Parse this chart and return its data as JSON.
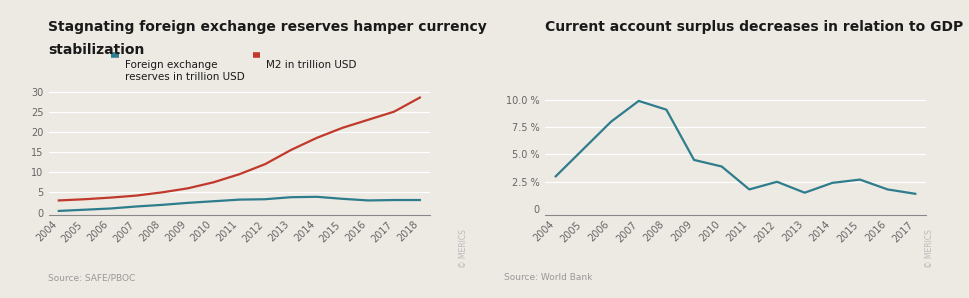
{
  "chart1": {
    "title_line1": "Stagnating foreign exchange reserves hamper currency",
    "title_line2": "stabilization",
    "years": [
      2004,
      2005,
      2006,
      2007,
      2008,
      2009,
      2010,
      2011,
      2012,
      2013,
      2014,
      2015,
      2016,
      2017,
      2018
    ],
    "fx_reserves": [
      0.4,
      0.7,
      1.0,
      1.5,
      1.9,
      2.4,
      2.8,
      3.2,
      3.3,
      3.8,
      3.9,
      3.4,
      3.0,
      3.1,
      3.1
    ],
    "m2": [
      3.0,
      3.3,
      3.7,
      4.2,
      5.0,
      6.0,
      7.5,
      9.5,
      12.0,
      15.5,
      18.5,
      21.0,
      23.0,
      25.0,
      28.5
    ],
    "fx_color": "#2e7d8c",
    "m2_color": "#c0392b",
    "legend_fx": "Foreign exchange\nreserves in trillion USD",
    "legend_m2": "M2 in trillion USD",
    "yticks": [
      0,
      5,
      10,
      15,
      20,
      25,
      30
    ],
    "ylim": [
      -0.5,
      32
    ],
    "source": "Source: SAFE/PBOC"
  },
  "chart2": {
    "title": "Current account surplus decreases in relation to GDP",
    "years": [
      2004,
      2005,
      2006,
      2007,
      2008,
      2009,
      2010,
      2011,
      2012,
      2013,
      2014,
      2015,
      2016,
      2017
    ],
    "values": [
      3.0,
      5.5,
      8.0,
      9.9,
      9.1,
      4.5,
      3.9,
      1.8,
      2.5,
      1.5,
      2.4,
      2.7,
      1.8,
      1.4
    ],
    "line_color": "#2e7d8c",
    "yticks": [
      0,
      2.5,
      5.0,
      7.5,
      10.0
    ],
    "ylim": [
      -0.5,
      11.5
    ],
    "source": "Source: World Bank"
  },
  "bg_color": "#ede9e3",
  "title_fontsize": 10,
  "legend_fontsize": 7.5,
  "tick_fontsize": 7,
  "source_fontsize": 6.5
}
